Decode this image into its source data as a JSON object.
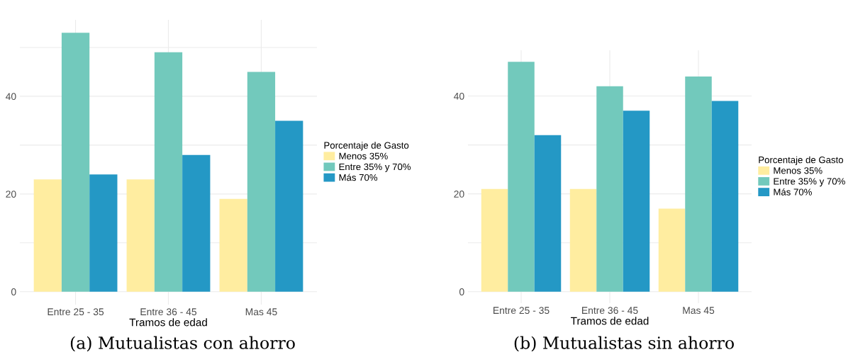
{
  "chart_data": [
    {
      "type": "bar",
      "title": "(a) Mutualistas con ahorro",
      "xlabel": "Tramos de edad",
      "legend_title": "Porcentaje de Gasto",
      "legend": "right",
      "categories": [
        "Entre 25 - 35",
        "Entre 36 - 45",
        "Mas 45"
      ],
      "series": [
        {
          "name": "Menos 35%",
          "color": "#ffeda0",
          "values": [
            23,
            23,
            19
          ]
        },
        {
          "name": "Entre 35% y 70%",
          "color": "#72c9bc",
          "values": [
            53,
            49,
            45
          ]
        },
        {
          "name": "Más 70%",
          "color": "#2498c5",
          "values": [
            24,
            28,
            35
          ]
        }
      ],
      "ylim": [
        -2.65,
        55.65
      ],
      "yticks": [
        0,
        {
          "value": 10,
          "label": null
        },
        20,
        {
          "value": 30,
          "label": null
        },
        40,
        {
          "value": 50,
          "label": null
        }
      ],
      "grid": true
    },
    {
      "type": "bar",
      "title": "(b) Mutualistas sin ahorro",
      "xlabel": "Tramos de edad",
      "legend_title": "Porcentaje de Gasto",
      "legend": "right",
      "categories": [
        "Entre 25 - 35",
        "Entre 36 - 45",
        "Mas 45"
      ],
      "series": [
        {
          "name": "Menos 35%",
          "color": "#ffeda0",
          "values": [
            21,
            21,
            17
          ]
        },
        {
          "name": "Entre 35% y 70%",
          "color": "#72c9bc",
          "values": [
            47,
            42,
            44
          ]
        },
        {
          "name": "Más 70%",
          "color": "#2498c5",
          "values": [
            32,
            37,
            39
          ]
        }
      ],
      "ylim": [
        -2.35,
        49.35
      ],
      "yticks": [
        0,
        {
          "value": 10,
          "label": null
        },
        20,
        {
          "value": 30,
          "label": null
        },
        40
      ],
      "grid": true
    }
  ]
}
